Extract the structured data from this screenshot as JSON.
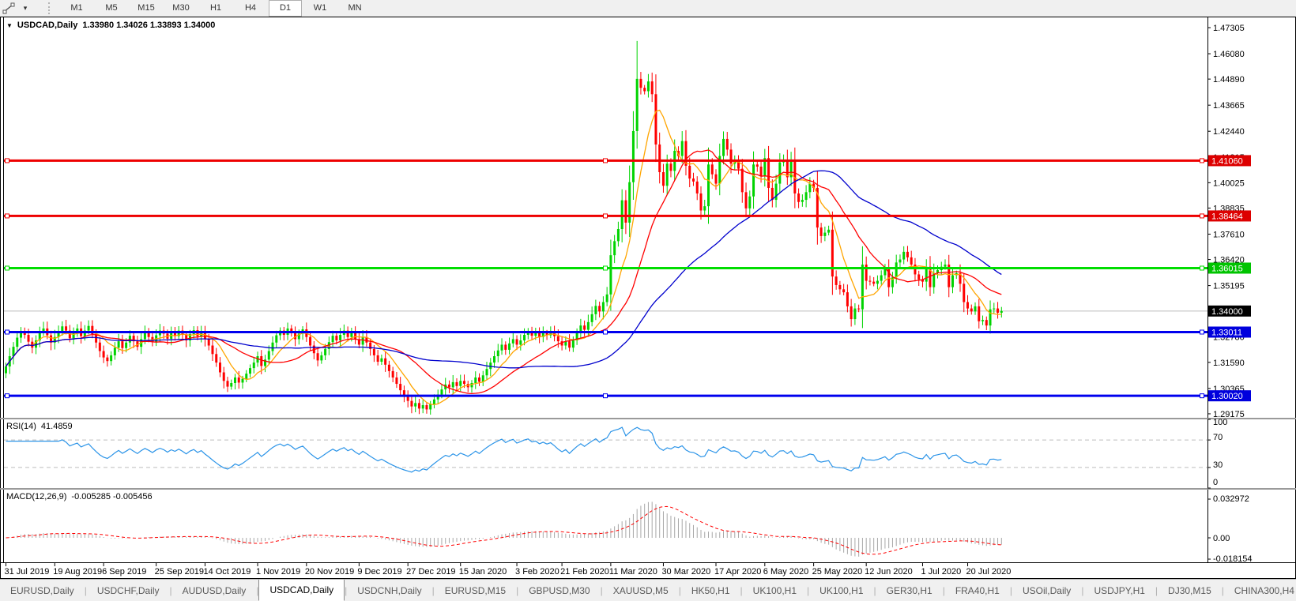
{
  "toolbar": {
    "line_studies_icon": "trendline-icon",
    "dropdown_caret": "▾",
    "timeframes": [
      "M1",
      "M5",
      "M15",
      "M30",
      "H1",
      "H4",
      "D1",
      "W1",
      "MN"
    ],
    "active_timeframe": "D1"
  },
  "chart_data": {
    "type": "candlestick",
    "symbol": "USDCAD",
    "timeframe": "Daily",
    "title": {
      "symbol_period": "USDCAD,Daily",
      "collapse_icon": "▼",
      "open": "1.33980",
      "high": "1.34026",
      "low": "1.33893",
      "close": "1.34000"
    },
    "price_axis": {
      "ticks": [
        "1.47305",
        "1.46080",
        "1.44890",
        "1.43665",
        "1.42440",
        "1.41215",
        "1.40025",
        "1.38835",
        "1.37610",
        "1.36420",
        "1.35195",
        "1.33970",
        "1.32780",
        "1.31590",
        "1.30365",
        "1.29175"
      ]
    },
    "h_lines": [
      {
        "price": 1.4106,
        "label": "1.41060",
        "color": "#ee0000",
        "label_bg": "#dd0000",
        "label_fg": "#ffffff"
      },
      {
        "price": 1.38464,
        "label": "1.38464",
        "color": "#ee0000",
        "label_bg": "#dd0000",
        "label_fg": "#ffffff"
      },
      {
        "price": 1.36015,
        "label": "1.36015",
        "color": "#00dd00",
        "label_bg": "#00c400",
        "label_fg": "#ffffff"
      },
      {
        "price": 1.33011,
        "label": "1.33011",
        "color": "#0000ee",
        "label_bg": "#0000dd",
        "label_fg": "#ffffff"
      },
      {
        "price": 1.3002,
        "label": "1.30020",
        "color": "#0000ee",
        "label_bg": "#0000dd",
        "label_fg": "#ffffff"
      }
    ],
    "current_price": {
      "label": "1.34000",
      "price": 1.34,
      "line_color": "#bbbbbb",
      "label_bg": "#000000",
      "label_fg": "#ffffff"
    },
    "date_axis": {
      "labels": [
        "31 Jul 2019",
        "19 Aug 2019",
        "6 Sep 2019",
        "25 Sep 2019",
        "14 Oct 2019",
        "1 Nov 2019",
        "20 Nov 2019",
        "9 Dec 2019",
        "27 Dec 2019",
        "15 Jan 2020",
        "3 Feb 2020",
        "21 Feb 2020",
        "11 Mar 2020",
        "30 Mar 2020",
        "17 Apr 2020",
        "6 May 2020",
        "25 May 2020",
        "12 Jun 2020",
        "1 Jul 2020",
        "20 Jul 2020"
      ],
      "candle_indices": [
        0,
        13,
        26,
        40,
        53,
        67,
        80,
        94,
        107,
        121,
        136,
        148,
        161,
        175,
        189,
        202,
        215,
        229,
        244,
        256
      ]
    },
    "candles": {
      "up_color": "#00d300",
      "down_color": "#ff0000",
      "first_open": 1.3108,
      "closes": [
        1.314,
        1.3188,
        1.3232,
        1.3275,
        1.3302,
        1.3288,
        1.3256,
        1.3228,
        1.3262,
        1.3298,
        1.3318,
        1.3286,
        1.3252,
        1.3278,
        1.3302,
        1.3328,
        1.3308,
        1.3272,
        1.3296,
        1.3318,
        1.3282,
        1.3308,
        1.333,
        1.3292,
        1.3252,
        1.3212,
        1.3182,
        1.3165,
        1.3192,
        1.3228,
        1.3258,
        1.3226,
        1.3252,
        1.3284,
        1.3258,
        1.3232,
        1.3268,
        1.3298,
        1.3278,
        1.3254,
        1.3286,
        1.3308,
        1.3294,
        1.327,
        1.3298,
        1.3282,
        1.3308,
        1.3288,
        1.3262,
        1.3292,
        1.331,
        1.3282,
        1.3302,
        1.3268,
        1.3238,
        1.3198,
        1.3158,
        1.3112,
        1.3072,
        1.3045,
        1.3062,
        1.3088,
        1.3064,
        1.3082,
        1.3106,
        1.3132,
        1.3158,
        1.3188,
        1.3142,
        1.3172,
        1.3212,
        1.3252,
        1.3286,
        1.3308,
        1.3288,
        1.3318,
        1.3298,
        1.3268,
        1.3294,
        1.3314,
        1.3278,
        1.3238,
        1.3202,
        1.3168,
        1.3192,
        1.3222,
        1.3254,
        1.3284,
        1.3262,
        1.3288,
        1.3308,
        1.3278,
        1.3298,
        1.3268,
        1.3242,
        1.3278,
        1.3252,
        1.3222,
        1.3192,
        1.3162,
        1.3178,
        1.3148,
        1.3118,
        1.3088,
        1.3058,
        1.3028,
        1.3002,
        1.2978,
        1.2952,
        1.2968,
        1.2942,
        1.2958,
        1.2938,
        1.2962,
        1.2985,
        1.3008,
        1.3032,
        1.3055,
        1.3042,
        1.3066,
        1.3048,
        1.3072,
        1.3058,
        1.3042,
        1.3062,
        1.3088,
        1.3068,
        1.3098,
        1.3128,
        1.3158,
        1.3188,
        1.3215,
        1.3242,
        1.3218,
        1.3248,
        1.3268,
        1.3242,
        1.3262,
        1.3288,
        1.3304,
        1.3284,
        1.3296,
        1.3278,
        1.3298,
        1.3286,
        1.3302,
        1.3282,
        1.3258,
        1.3238,
        1.3258,
        1.3228,
        1.3262,
        1.3298,
        1.3332,
        1.3312,
        1.3348,
        1.3385,
        1.3424,
        1.3398,
        1.3442,
        1.3478,
        1.3662,
        1.3728,
        1.3785,
        1.392,
        1.3815,
        1.4005,
        1.4245,
        1.449,
        1.4448,
        1.4432,
        1.4478,
        1.4418,
        1.4182,
        1.4052,
        1.3988,
        1.4092,
        1.4058,
        1.4152,
        1.4128,
        1.4198,
        1.4082,
        1.4022,
        1.4008,
        1.3952,
        1.3872,
        1.3892,
        1.4088,
        1.4042,
        1.3998,
        1.4128,
        1.4208,
        1.4158,
        1.4092,
        1.4102,
        1.4068,
        1.3958,
        1.3882,
        1.3938,
        1.4088,
        1.4078,
        1.4032,
        1.4118,
        1.3978,
        1.3922,
        1.3998,
        1.4098,
        1.4108,
        1.4028,
        1.4108,
        1.3952,
        1.3912,
        1.3922,
        1.3958,
        1.3998,
        1.3978,
        1.3792,
        1.3752,
        1.3768,
        1.3782,
        1.3562,
        1.3522,
        1.3502,
        1.3488,
        1.3422,
        1.3362,
        1.3412,
        1.3408,
        1.3618,
        1.3542,
        1.3538,
        1.3528,
        1.3542,
        1.3568,
        1.3598,
        1.3512,
        1.3558,
        1.3628,
        1.3642,
        1.3678,
        1.3652,
        1.3618,
        1.3572,
        1.3548,
        1.3538,
        1.3608,
        1.3512,
        1.3578,
        1.3592,
        1.3608,
        1.3618,
        1.3512,
        1.3568,
        1.3578,
        1.3528,
        1.3442,
        1.3412,
        1.3398,
        1.3422,
        1.3352,
        1.3358,
        1.3332,
        1.3408,
        1.3412,
        1.3392,
        1.34
      ],
      "overrides": {
        "168": {
          "high": 1.4668
        },
        "112": {
          "low": 1.2918
        },
        "259": {
          "low": 1.3318
        }
      }
    },
    "moving_averages": [
      {
        "name": "ma-fast",
        "period": 8,
        "color": "#ffa500"
      },
      {
        "name": "ma-mid",
        "period": 21,
        "color": "#ff0000"
      },
      {
        "name": "ma-slow",
        "period": 55,
        "color": "#0000cd"
      }
    ]
  },
  "rsi": {
    "label": "RSI(14)",
    "value": "41.4859",
    "period": 14,
    "color": "#2b94e8",
    "axis_labels": [
      "100",
      "70",
      "30",
      "0"
    ],
    "axis_values": [
      100,
      70,
      30,
      0
    ],
    "dashed_levels": [
      70,
      30
    ]
  },
  "macd": {
    "label": "MACD(12,26,9)",
    "values": "-0.005285 -0.005456",
    "fast": 12,
    "slow": 26,
    "signal": 9,
    "histogram_color": "#a8a8a8",
    "signal_color": "#ff0000",
    "axis": {
      "max_label": "0.032972",
      "zero_label": "0.00",
      "min_label": "-0.018154",
      "max": 0.032972,
      "min": -0.018154
    }
  },
  "tabs": {
    "items": [
      "EURUSD,Daily",
      "USDCHF,Daily",
      "AUDUSD,Daily",
      "USDCAD,Daily",
      "USDCNH,Daily",
      "EURUSD,M15",
      "GBPUSD,M30",
      "XAUUSD,M5",
      "HK50,H1",
      "UK100,H1",
      "UK100,H1",
      "GER30,H1",
      "FRA40,H1",
      "USOil,Daily",
      "USDJPY,H1",
      "DJ30,M15",
      "CHINA300,H4"
    ],
    "active_index": 3,
    "scroll_left": "◂",
    "scroll_right": "▸"
  }
}
